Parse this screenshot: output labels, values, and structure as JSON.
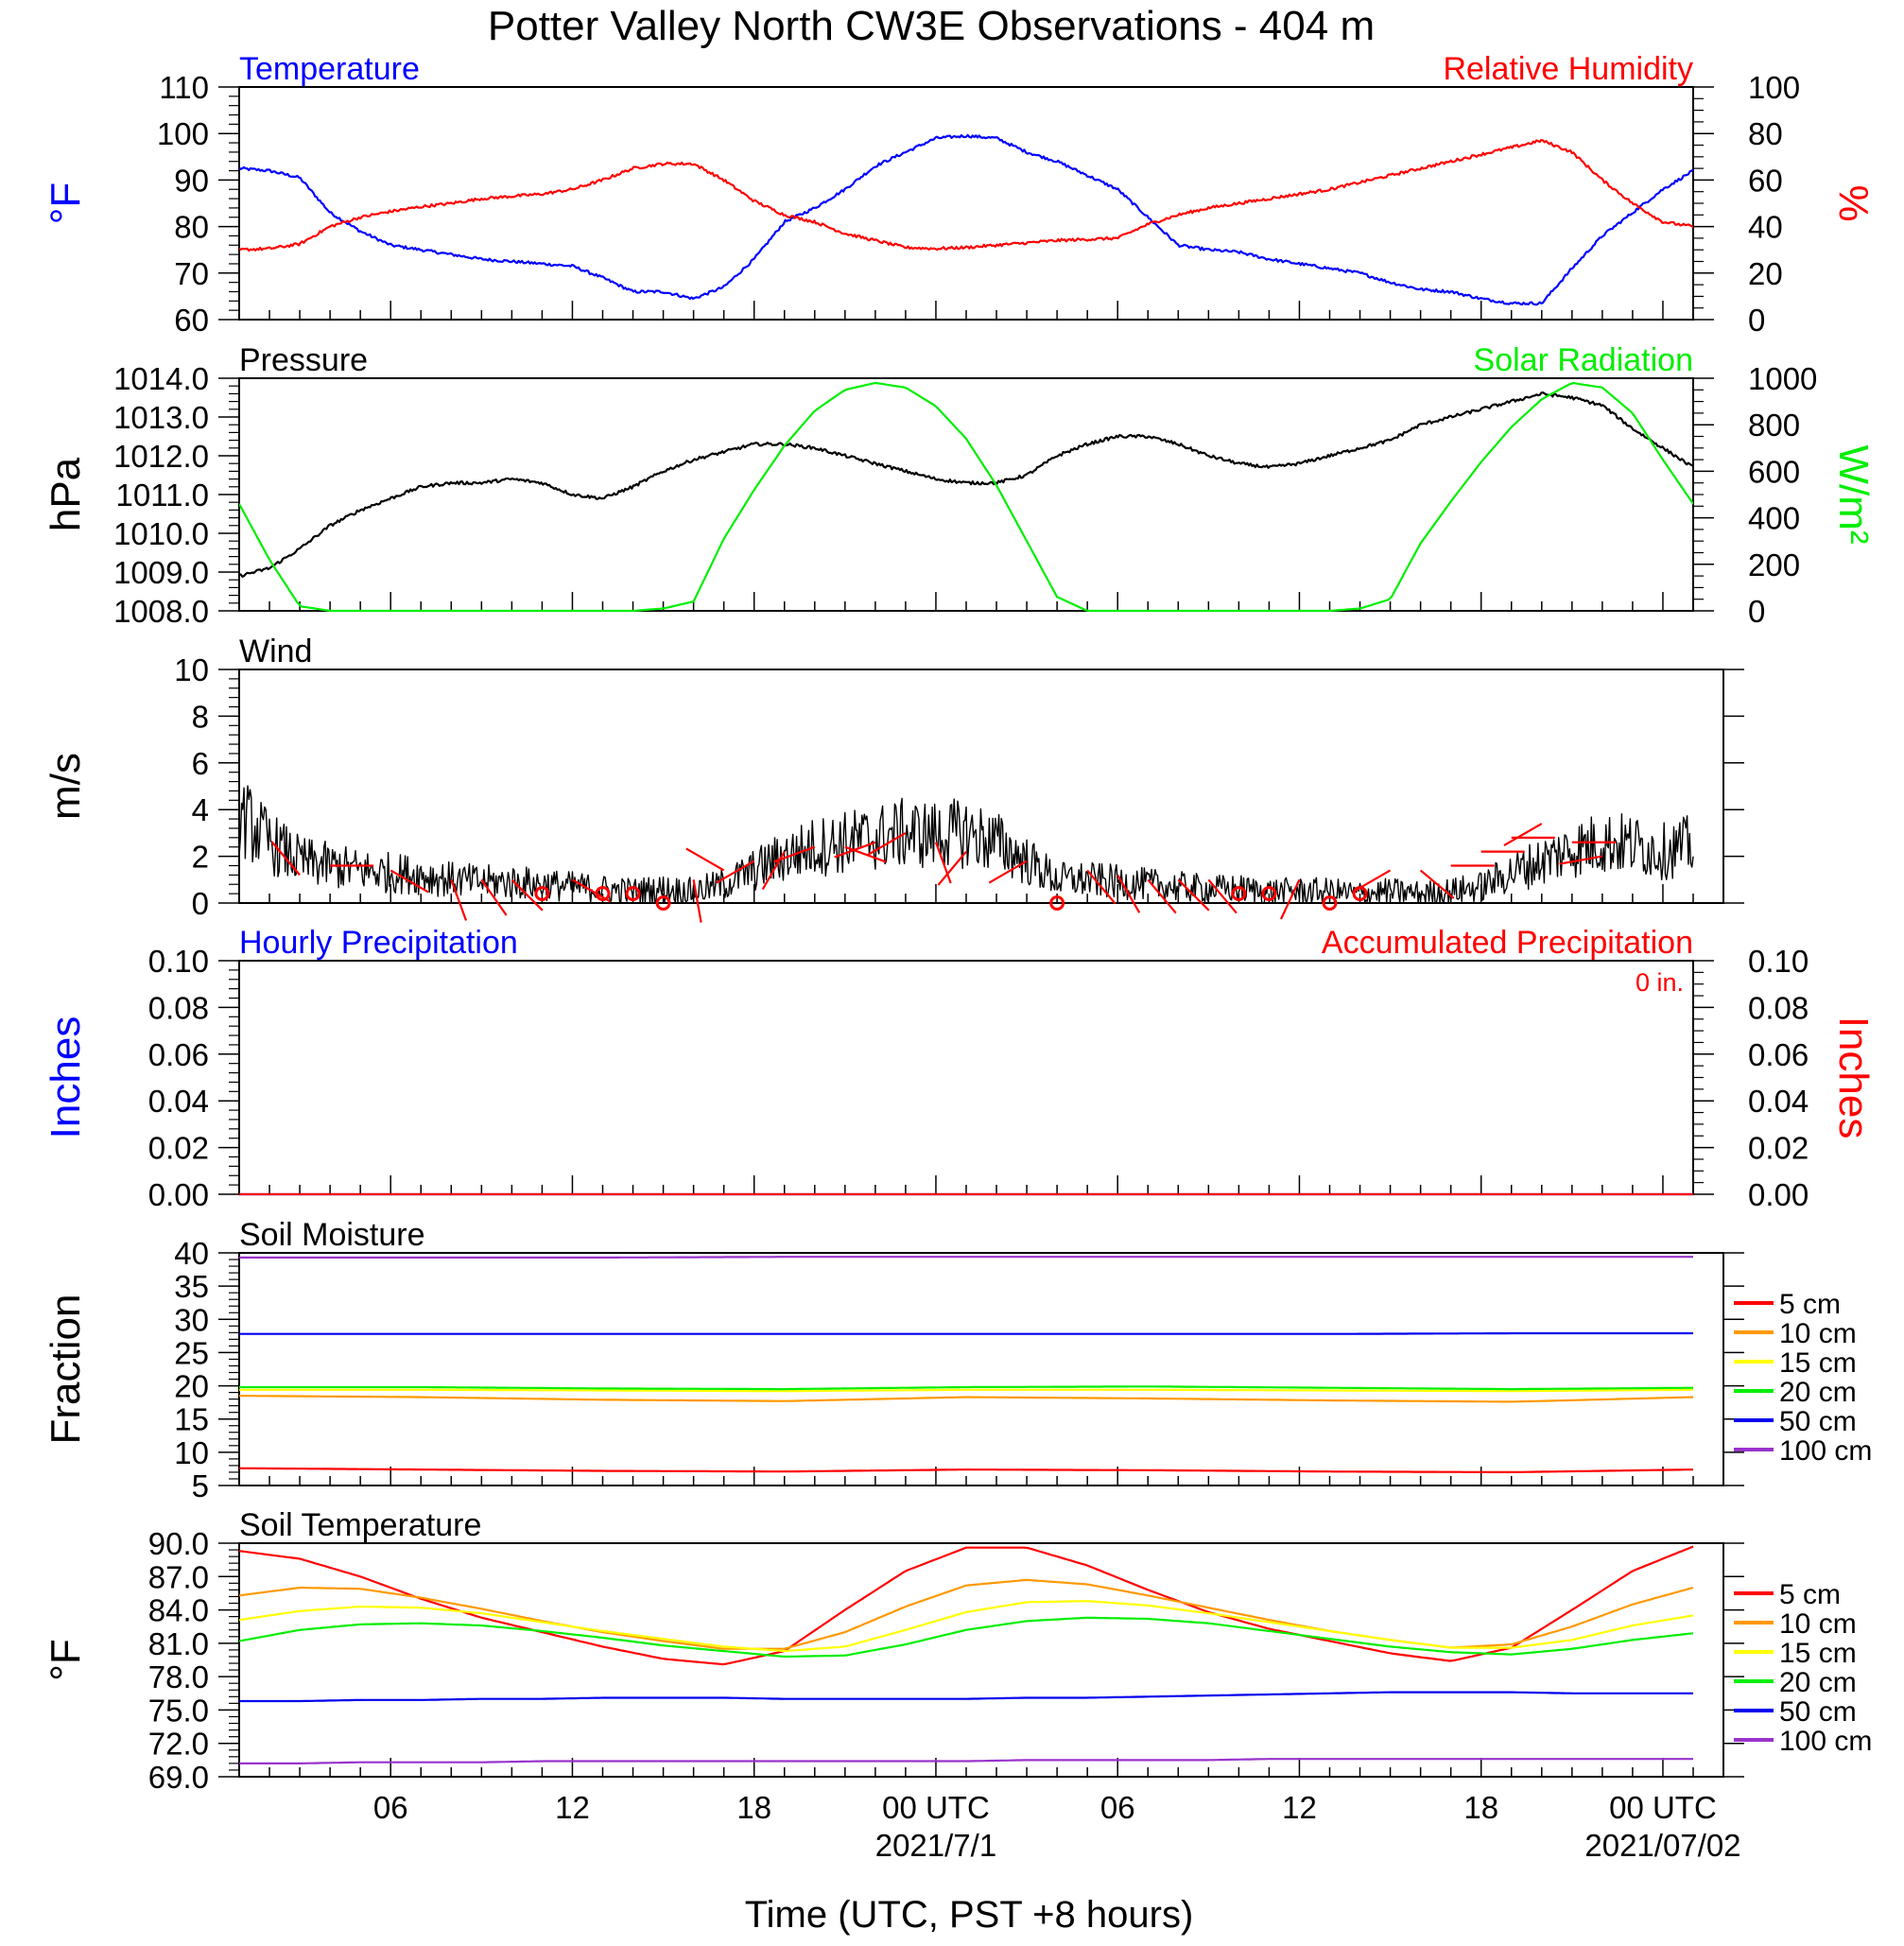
{
  "title": "Potter Valley North CW3E Observations - 404 m",
  "xlabel": "Time (UTC, PST +8 hours)",
  "colors": {
    "blue": "#0000ff",
    "red": "#ff0000",
    "green": "#00ee00",
    "black": "#000000",
    "depth_5": "#ff0000",
    "depth_10": "#ff9900",
    "depth_15": "#ffff00",
    "depth_20": "#00ee00",
    "depth_50": "#0000ee",
    "depth_100": "#9933cc"
  },
  "chart_data": [
    {
      "id": "temp_rh",
      "type": "line",
      "left_title": "Temperature",
      "right_title": "Relative Humidity",
      "ylabel_left": "°F",
      "ylabel_right": "%",
      "ylim_left": [
        60,
        110
      ],
      "ylim_right": [
        0,
        100
      ],
      "yticks_left": [
        "60",
        "70",
        "80",
        "90",
        "100",
        "110"
      ],
      "yticks_right": [
        "0",
        "20",
        "40",
        "60",
        "80",
        "100"
      ],
      "x_hours": [
        0,
        1,
        2,
        3,
        4,
        5,
        6,
        7,
        8,
        9,
        10,
        11,
        12,
        13,
        14,
        15,
        16,
        17,
        18,
        19,
        20,
        21,
        22,
        23,
        24,
        25,
        26,
        27,
        28,
        29,
        30,
        31,
        32,
        33,
        34,
        35,
        36,
        37,
        38,
        39,
        40,
        41,
        42,
        43,
        44,
        45,
        46,
        47,
        48
      ],
      "series": [
        {
          "axis": "left",
          "color": "blue",
          "values": [
            92.5,
            92,
            90.5,
            83,
            79,
            76,
            75,
            74,
            73,
            72.5,
            72,
            71.5,
            69,
            66,
            66,
            64.5,
            67,
            73,
            81,
            84,
            88,
            93,
            96,
            99,
            99.5,
            99,
            96,
            94,
            91,
            88,
            82,
            76,
            75,
            74.5,
            73,
            72,
            71,
            70,
            68,
            66.5,
            66,
            64.5,
            63.5,
            63.5,
            71,
            78,
            83,
            88,
            92
          ]
        },
        {
          "axis": "right",
          "color": "red",
          "values": [
            30,
            30.5,
            32.5,
            40,
            44,
            46.5,
            48.5,
            50,
            52,
            53,
            54,
            56,
            60,
            65,
            67,
            67,
            60,
            51,
            45,
            42,
            37,
            34,
            31,
            30.5,
            31,
            32,
            33,
            34,
            34.5,
            35,
            41,
            45,
            48,
            50,
            52,
            54,
            56,
            59,
            62,
            65,
            68,
            71,
            74,
            77,
            72,
            60,
            50,
            42,
            40
          ]
        }
      ]
    },
    {
      "id": "pressure_solar",
      "type": "line",
      "left_title": "Pressure",
      "right_title": "Solar Radiation",
      "ylabel_left": "hPa",
      "ylabel_right": "W/m²",
      "ylim_left": [
        1008.0,
        1014.0
      ],
      "ylim_right": [
        0,
        1000
      ],
      "yticks_left": [
        "1008.0",
        "1009.0",
        "1010.0",
        "1011.0",
        "1012.0",
        "1013.0",
        "1014.0"
      ],
      "yticks_right": [
        "0",
        "200",
        "400",
        "600",
        "800",
        "1000"
      ],
      "x_hours": [
        0,
        1,
        2,
        3,
        4,
        5,
        6,
        7,
        8,
        9,
        10,
        11,
        12,
        13,
        14,
        15,
        16,
        17,
        18,
        19,
        20,
        21,
        22,
        23,
        24,
        25,
        26,
        27,
        28,
        29,
        30,
        31,
        32,
        33,
        34,
        35,
        36,
        37,
        38,
        39,
        40,
        41,
        42,
        43,
        44,
        45,
        46,
        47,
        48
      ],
      "series": [
        {
          "axis": "left",
          "color": "black",
          "values": [
            1008.9,
            1009.1,
            1009.6,
            1010.2,
            1010.6,
            1010.9,
            1011.2,
            1011.3,
            1011.3,
            1011.4,
            1011.3,
            1011.0,
            1010.9,
            1011.2,
            1011.6,
            1011.9,
            1012.1,
            1012.3,
            1012.3,
            1012.2,
            1012.0,
            1011.8,
            1011.6,
            1011.4,
            1011.3,
            1011.3,
            1011.5,
            1012.0,
            1012.3,
            1012.5,
            1012.5,
            1012.3,
            1012.0,
            1011.8,
            1011.7,
            1011.8,
            1012.0,
            1012.2,
            1012.4,
            1012.8,
            1013.0,
            1013.2,
            1013.4,
            1013.6,
            1013.5,
            1013.3,
            1012.7,
            1012.2,
            1011.7
          ]
        },
        {
          "axis": "right",
          "color": "green",
          "values": [
            460,
            220,
            20,
            0,
            0,
            0,
            0,
            0,
            0,
            0,
            0,
            0,
            0,
            0,
            10,
            40,
            310,
            520,
            710,
            860,
            950,
            980,
            960,
            880,
            740,
            540,
            300,
            60,
            0,
            0,
            0,
            0,
            0,
            0,
            0,
            0,
            0,
            10,
            50,
            290,
            470,
            640,
            790,
            910,
            980,
            960,
            850,
            650,
            460
          ]
        }
      ]
    },
    {
      "id": "wind",
      "type": "line",
      "left_title": "Wind",
      "ylabel_left": "m/s",
      "ylim_left": [
        0,
        10
      ],
      "yticks_left": [
        "0",
        "2",
        "4",
        "6",
        "8",
        "10"
      ],
      "x_hours": [
        0,
        1,
        2,
        3,
        4,
        5,
        6,
        7,
        8,
        9,
        10,
        11,
        12,
        13,
        14,
        15,
        16,
        17,
        18,
        19,
        20,
        21,
        22,
        23,
        24,
        25,
        26,
        27,
        28,
        29,
        30,
        31,
        32,
        33,
        34,
        35,
        36,
        37,
        38,
        39,
        40,
        41,
        42,
        43,
        44,
        45,
        46,
        47,
        48
      ],
      "series": [
        {
          "axis": "left",
          "color": "black",
          "values": [
            3.8,
            2.6,
            1.8,
            1.6,
            1.4,
            1.3,
            1.2,
            1.0,
            0.9,
            0.9,
            0.8,
            0.7,
            0.6,
            0.5,
            0.6,
            0.5,
            0.8,
            1.4,
            2.0,
            2.4,
            2.6,
            2.8,
            3.0,
            2.9,
            3.0,
            2.6,
            1.8,
            1.0,
            1.0,
            0.9,
            0.8,
            0.7,
            0.6,
            0.6,
            0.5,
            0.5,
            0.5,
            0.4,
            0.5,
            0.4,
            0.5,
            0.7,
            1.3,
            1.8,
            2.3,
            2.6,
            2.5,
            2.2,
            2.5
          ]
        }
      ],
      "calm_circles_hours": [
        10,
        12,
        13,
        14,
        27,
        33,
        34,
        36,
        37
      ],
      "barbs": [
        {
          "hour": 2,
          "speed": 1.2,
          "dir": 320
        },
        {
          "hour": 3,
          "speed": 1.6,
          "dir": 90
        },
        {
          "hour": 5,
          "speed": 1.4,
          "dir": 120
        },
        {
          "hour": 7,
          "speed": 1.0,
          "dir": 160
        },
        {
          "hour": 8,
          "speed": 1.0,
          "dir": 145
        },
        {
          "hour": 9,
          "speed": 1.0,
          "dir": 135
        },
        {
          "hour": 11,
          "speed": 1.0,
          "dir": 120
        },
        {
          "hour": 15,
          "speed": 1.0,
          "dir": 170
        },
        {
          "hour": 16,
          "speed": 1.4,
          "dir": 300
        },
        {
          "hour": 17,
          "speed": 1.8,
          "dir": 240
        },
        {
          "hour": 18,
          "speed": 2.2,
          "dir": 210
        },
        {
          "hour": 19,
          "speed": 2.4,
          "dir": 250
        },
        {
          "hour": 20,
          "speed": 2.4,
          "dir": 110
        },
        {
          "hour": 21,
          "speed": 2.6,
          "dir": 250
        },
        {
          "hour": 22,
          "speed": 3.0,
          "dir": 240
        },
        {
          "hour": 23,
          "speed": 2.6,
          "dir": 160
        },
        {
          "hour": 24,
          "speed": 2.2,
          "dir": 220
        },
        {
          "hour": 26,
          "speed": 1.8,
          "dir": 240
        },
        {
          "hour": 28,
          "speed": 1.4,
          "dir": 140
        },
        {
          "hour": 29,
          "speed": 1.2,
          "dir": 150
        },
        {
          "hour": 30,
          "speed": 1.0,
          "dir": 140
        },
        {
          "hour": 31,
          "speed": 1.0,
          "dir": 135
        },
        {
          "hour": 32,
          "speed": 1.0,
          "dir": 140
        },
        {
          "hour": 35,
          "speed": 1.0,
          "dir": 205
        },
        {
          "hour": 38,
          "speed": 1.4,
          "dir": 240
        },
        {
          "hour": 39,
          "speed": 1.4,
          "dir": 130
        },
        {
          "hour": 40,
          "speed": 1.6,
          "dir": 90
        },
        {
          "hour": 41,
          "speed": 2.2,
          "dir": 90
        },
        {
          "hour": 42,
          "speed": 2.8,
          "dir": 90
        },
        {
          "hour": 43,
          "speed": 3.4,
          "dir": 240
        },
        {
          "hour": 44,
          "speed": 2.6,
          "dir": 90
        },
        {
          "hour": 45,
          "speed": 2.0,
          "dir": 260
        }
      ]
    },
    {
      "id": "precip",
      "type": "line",
      "left_title": "Hourly Precipitation",
      "right_title": "Accumulated Precipitation",
      "annotation": "0 in.",
      "ylabel_left": "Inches",
      "ylabel_right": "Inches",
      "ylim_left": [
        0,
        0.1
      ],
      "ylim_right": [
        0,
        0.1
      ],
      "yticks_left": [
        "0.00",
        "0.02",
        "0.04",
        "0.06",
        "0.08",
        "0.10"
      ],
      "yticks_right": [
        "0.00",
        "0.02",
        "0.04",
        "0.06",
        "0.08",
        "0.10"
      ],
      "x_hours": [
        0,
        48
      ],
      "series": [
        {
          "axis": "left",
          "color": "blue",
          "values": [
            0,
            0
          ]
        },
        {
          "axis": "right",
          "color": "red",
          "values": [
            0,
            0
          ]
        }
      ]
    },
    {
      "id": "soil_moisture",
      "type": "line",
      "left_title": "Soil Moisture",
      "ylabel_left": "Fraction",
      "ylim_left": [
        5,
        40
      ],
      "yticks_left": [
        "5",
        "10",
        "15",
        "20",
        "25",
        "30",
        "35",
        "40"
      ],
      "x_hours": [
        0,
        6,
        12,
        18,
        24,
        30,
        36,
        42,
        48
      ],
      "series": [
        {
          "name": "5 cm",
          "color": "depth_5",
          "values": [
            7.6,
            7.4,
            7.2,
            7.1,
            7.4,
            7.3,
            7.1,
            7.0,
            7.4
          ]
        },
        {
          "name": "10 cm",
          "color": "depth_10",
          "values": [
            18.5,
            18.3,
            17.9,
            17.7,
            18.3,
            18.1,
            17.8,
            17.6,
            18.3
          ]
        },
        {
          "name": "15 cm",
          "color": "depth_15",
          "values": [
            19.4,
            19.4,
            19.3,
            19.2,
            19.4,
            19.4,
            19.3,
            19.2,
            19.4
          ]
        },
        {
          "name": "20 cm",
          "color": "depth_20",
          "values": [
            19.8,
            19.8,
            19.6,
            19.5,
            19.8,
            19.9,
            19.7,
            19.5,
            19.7
          ]
        },
        {
          "name": "50 cm",
          "color": "depth_50",
          "values": [
            27.8,
            27.8,
            27.8,
            27.8,
            27.8,
            27.8,
            27.8,
            27.9,
            27.9
          ]
        },
        {
          "name": "100 cm",
          "color": "depth_100",
          "values": [
            39.3,
            39.3,
            39.3,
            39.4,
            39.4,
            39.4,
            39.4,
            39.4,
            39.4
          ]
        }
      ]
    },
    {
      "id": "soil_temp",
      "type": "line",
      "left_title": "Soil Temperature",
      "ylabel_left": "°F",
      "ylim_left": [
        69.0,
        90.0
      ],
      "yticks_left": [
        "69.0",
        "72.0",
        "75.0",
        "78.0",
        "81.0",
        "84.0",
        "87.0",
        "90.0"
      ],
      "xticks": [
        "06",
        "12",
        "18",
        "00 UTC",
        "06",
        "12",
        "18",
        "00 UTC"
      ],
      "xtick_hours": [
        5,
        11,
        17,
        23,
        29,
        35,
        41,
        47
      ],
      "date_labels": [
        "2021/7/1",
        "2021/07/02"
      ],
      "date_label_hours": [
        23,
        47
      ],
      "x_hours": [
        0,
        2,
        4,
        6,
        8,
        10,
        12,
        14,
        16,
        18,
        20,
        22,
        24,
        26,
        28,
        30,
        32,
        34,
        36,
        38,
        40,
        42,
        44,
        46,
        48
      ],
      "series": [
        {
          "name": "5 cm",
          "color": "depth_5",
          "values": [
            89.3,
            88.6,
            87.0,
            85.0,
            83.3,
            82.0,
            80.7,
            79.6,
            79.1,
            80.3,
            84.0,
            87.5,
            89.6,
            89.6,
            88.0,
            85.8,
            83.8,
            82.3,
            81.2,
            80.1,
            79.4,
            80.6,
            84.0,
            87.5,
            89.7
          ]
        },
        {
          "name": "10 cm",
          "color": "depth_10",
          "values": [
            85.3,
            86.0,
            85.9,
            85.1,
            84.1,
            83.0,
            82.0,
            81.2,
            80.5,
            80.5,
            82.0,
            84.3,
            86.2,
            86.7,
            86.3,
            85.3,
            84.2,
            83.1,
            82.1,
            81.3,
            80.6,
            80.9,
            82.5,
            84.5,
            86.0
          ]
        },
        {
          "name": "15 cm",
          "color": "depth_15",
          "values": [
            83.1,
            83.9,
            84.3,
            84.2,
            83.7,
            82.9,
            82.1,
            81.4,
            80.7,
            80.3,
            80.7,
            82.2,
            83.8,
            84.7,
            84.8,
            84.4,
            83.7,
            82.9,
            82.1,
            81.3,
            80.6,
            80.6,
            81.3,
            82.6,
            83.5
          ]
        },
        {
          "name": "20 cm",
          "color": "depth_20",
          "values": [
            81.2,
            82.2,
            82.7,
            82.8,
            82.6,
            82.1,
            81.5,
            80.8,
            80.3,
            79.8,
            79.9,
            80.9,
            82.2,
            83.0,
            83.3,
            83.2,
            82.8,
            82.1,
            81.4,
            80.7,
            80.2,
            80.0,
            80.5,
            81.3,
            81.9
          ]
        },
        {
          "name": "50 cm",
          "color": "depth_50",
          "values": [
            75.8,
            75.8,
            75.9,
            75.9,
            76.0,
            76.0,
            76.1,
            76.1,
            76.1,
            76.0,
            76.0,
            76.0,
            76.0,
            76.1,
            76.1,
            76.2,
            76.3,
            76.4,
            76.5,
            76.6,
            76.6,
            76.6,
            76.5,
            76.5,
            76.5
          ]
        },
        {
          "name": "100 cm",
          "color": "depth_100",
          "values": [
            70.2,
            70.2,
            70.3,
            70.3,
            70.3,
            70.4,
            70.4,
            70.4,
            70.4,
            70.4,
            70.4,
            70.4,
            70.4,
            70.5,
            70.5,
            70.5,
            70.5,
            70.6,
            70.6,
            70.6,
            70.6,
            70.6,
            70.6,
            70.6,
            70.6
          ]
        }
      ]
    }
  ]
}
